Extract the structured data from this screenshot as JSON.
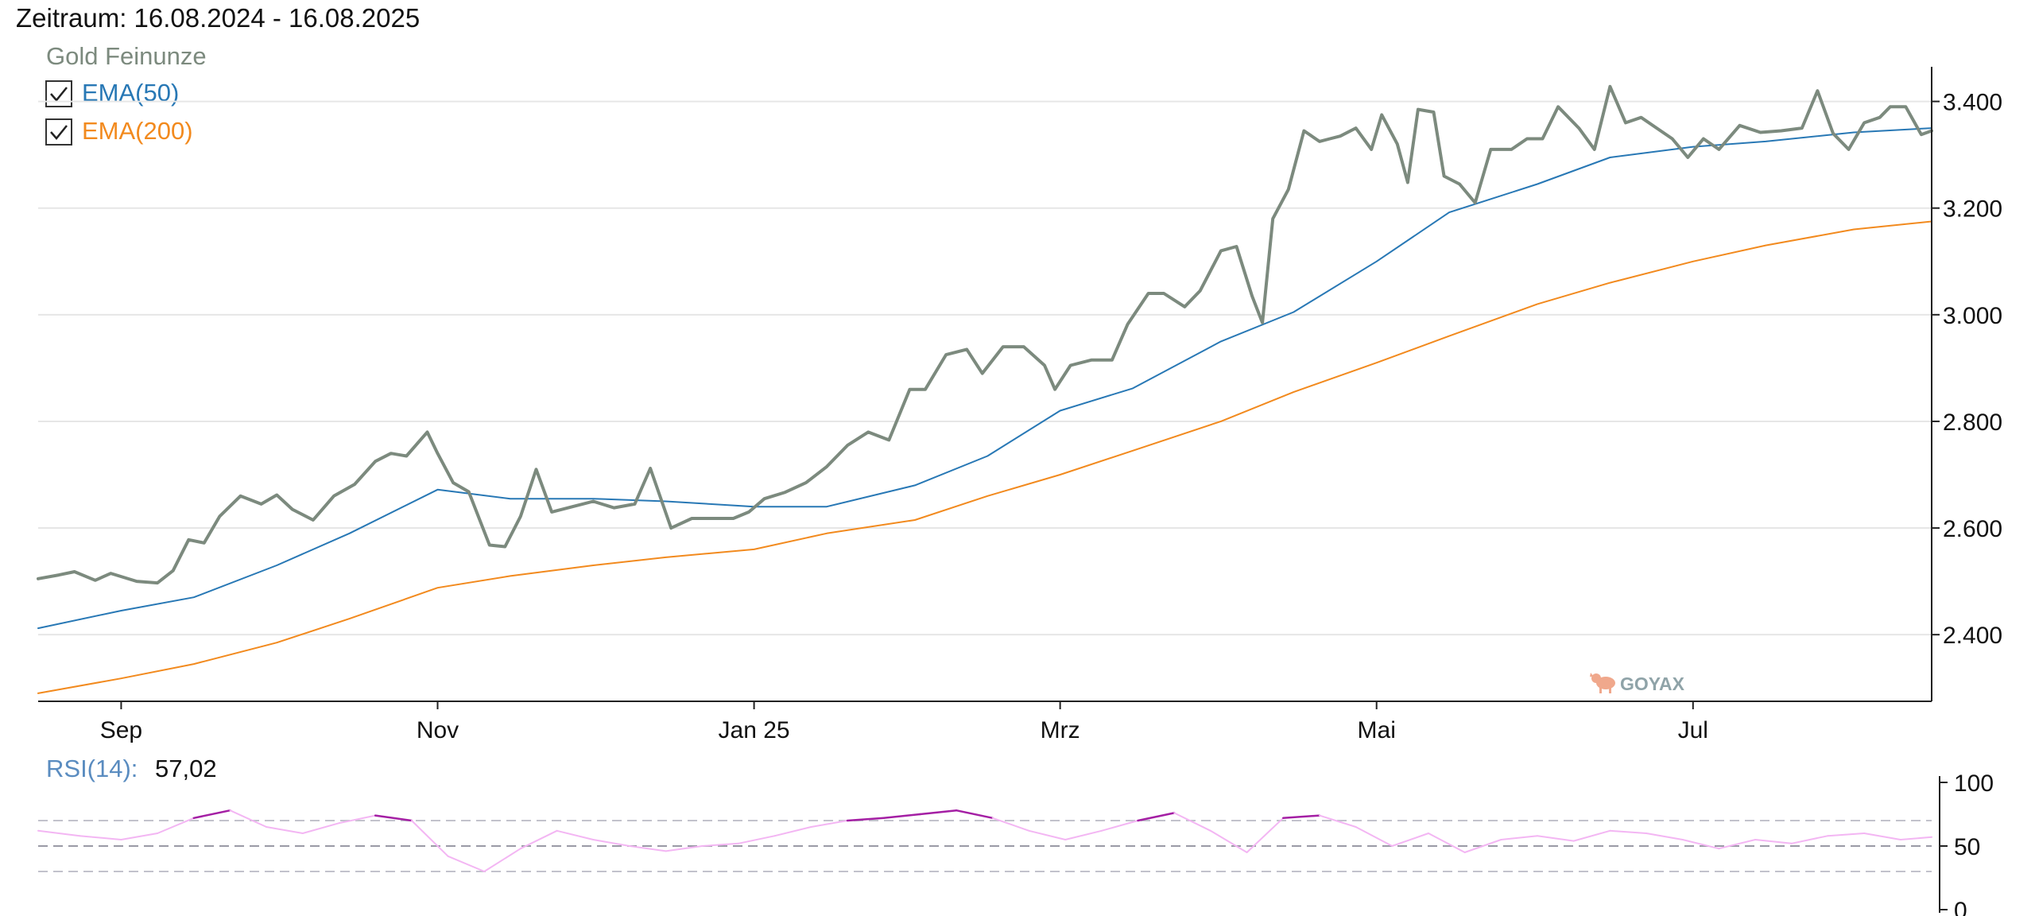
{
  "header": {
    "zeitraum": "Zeitraum: 16.08.2024 - 16.08.2025"
  },
  "legend": {
    "title": "Gold Feinunze",
    "items": [
      {
        "label": "EMA(50)",
        "checked": true,
        "color": "#2878b5"
      },
      {
        "label": "EMA(200)",
        "checked": true,
        "color": "#f28a1e"
      }
    ]
  },
  "watermark": "GOYAX",
  "colors": {
    "price": "#7c8a7e",
    "ema50": "#2878b5",
    "ema200": "#f28a1e",
    "rsi_normal": "#f3b6f3",
    "rsi_extreme": "#a41fa4",
    "grid": "#e6e6e6",
    "axis": "#222222"
  },
  "rsi": {
    "label": "RSI(14):",
    "value": "57,02"
  },
  "chart_data": [
    {
      "type": "line",
      "title": "Gold Feinunze",
      "x_tick_labels": [
        "Sep",
        "Nov",
        "Jan 25",
        "Mrz",
        "Mai",
        "Jul"
      ],
      "x_ticks": [
        "2024-09-01",
        "2024-11-01",
        "2025-01-01",
        "2025-03-01",
        "2025-05-01",
        "2025-07-01"
      ],
      "x_range": [
        "2024-08-16",
        "2025-08-16"
      ],
      "y_ticks": [
        2400,
        2600,
        2800,
        3000,
        3200,
        3400
      ],
      "y_tick_labels": [
        "2.400",
        "2.600",
        "2.800",
        "3.000",
        "3.200",
        "3.400"
      ],
      "ylim": [
        2275,
        3465
      ],
      "grid": "horizontal",
      "y_axis_side": "right",
      "series": [
        {
          "name": "Gold Feinunze",
          "x": [
            "2024-08-16",
            "2024-08-20",
            "2024-08-23",
            "2024-08-27",
            "2024-08-30",
            "2024-09-04",
            "2024-09-08",
            "2024-09-11",
            "2024-09-14",
            "2024-09-17",
            "2024-09-20",
            "2024-09-24",
            "2024-09-28",
            "2024-10-01",
            "2024-10-04",
            "2024-10-08",
            "2024-10-12",
            "2024-10-16",
            "2024-10-20",
            "2024-10-23",
            "2024-10-26",
            "2024-10-30",
            "2024-11-01",
            "2024-11-04",
            "2024-11-07",
            "2024-11-11",
            "2024-11-14",
            "2024-11-17",
            "2024-11-20",
            "2024-11-23",
            "2024-11-27",
            "2024-12-01",
            "2024-12-05",
            "2024-12-09",
            "2024-12-12",
            "2024-12-16",
            "2024-12-20",
            "2024-12-24",
            "2024-12-28",
            "2024-12-31",
            "2025-01-03",
            "2025-01-07",
            "2025-01-11",
            "2025-01-15",
            "2025-01-19",
            "2025-01-23",
            "2025-01-27",
            "2025-01-31",
            "2025-02-03",
            "2025-02-07",
            "2025-02-11",
            "2025-02-14",
            "2025-02-18",
            "2025-02-22",
            "2025-02-26",
            "2025-02-28",
            "2025-03-03",
            "2025-03-07",
            "2025-03-11",
            "2025-03-14",
            "2025-03-18",
            "2025-03-21",
            "2025-03-25",
            "2025-03-28",
            "2025-04-01",
            "2025-04-04",
            "2025-04-07",
            "2025-04-09",
            "2025-04-11",
            "2025-04-14",
            "2025-04-17",
            "2025-04-20",
            "2025-04-22",
            "2025-04-24",
            "2025-04-27",
            "2025-04-30",
            "2025-05-02",
            "2025-05-05",
            "2025-05-07",
            "2025-05-09",
            "2025-05-12",
            "2025-05-14",
            "2025-05-17",
            "2025-05-20",
            "2025-05-23",
            "2025-05-27",
            "2025-05-30",
            "2025-06-02",
            "2025-06-05",
            "2025-06-09",
            "2025-06-12",
            "2025-06-15",
            "2025-06-18",
            "2025-06-21",
            "2025-06-24",
            "2025-06-27",
            "2025-06-30",
            "2025-07-03",
            "2025-07-06",
            "2025-07-10",
            "2025-07-14",
            "2025-07-18",
            "2025-07-22",
            "2025-07-25",
            "2025-07-28",
            "2025-07-31",
            "2025-08-03",
            "2025-08-06",
            "2025-08-08",
            "2025-08-11",
            "2025-08-14",
            "2025-08-16"
          ],
          "y": [
            2505,
            2512,
            2518,
            2502,
            2515,
            2500,
            2497,
            2520,
            2578,
            2572,
            2622,
            2660,
            2645,
            2662,
            2635,
            2615,
            2660,
            2682,
            2725,
            2740,
            2735,
            2780,
            2740,
            2685,
            2668,
            2568,
            2565,
            2622,
            2710,
            2630,
            2640,
            2650,
            2638,
            2645,
            2712,
            2600,
            2618,
            2618,
            2618,
            2630,
            2655,
            2667,
            2685,
            2715,
            2755,
            2780,
            2765,
            2860,
            2860,
            2925,
            2935,
            2890,
            2940,
            2940,
            2905,
            2860,
            2905,
            2915,
            2915,
            2982,
            3040,
            3040,
            3015,
            3045,
            3120,
            3128,
            3035,
            2985,
            3180,
            3235,
            3345,
            3325,
            3330,
            3335,
            3350,
            3310,
            3375,
            3320,
            3248,
            3385,
            3380,
            3260,
            3245,
            3210,
            3310,
            3310,
            3330,
            3330,
            3390,
            3350,
            3310,
            3428,
            3360,
            3370,
            3350,
            3330,
            3295,
            3330,
            3310,
            3355,
            3342,
            3345,
            3350,
            3420,
            3340,
            3310,
            3360,
            3370,
            3390,
            3390,
            3338,
            3345
          ]
        },
        {
          "name": "EMA(50)",
          "x": [
            "2024-08-16",
            "2024-09-01",
            "2024-09-15",
            "2024-10-01",
            "2024-10-15",
            "2024-11-01",
            "2024-11-15",
            "2024-12-01",
            "2024-12-15",
            "2025-01-01",
            "2025-01-15",
            "2025-02-01",
            "2025-02-15",
            "2025-03-01",
            "2025-03-15",
            "2025-04-01",
            "2025-04-15",
            "2025-05-01",
            "2025-05-15",
            "2025-06-01",
            "2025-06-15",
            "2025-07-01",
            "2025-07-15",
            "2025-08-01",
            "2025-08-16"
          ],
          "y": [
            2412,
            2445,
            2470,
            2530,
            2590,
            2672,
            2655,
            2655,
            2650,
            2640,
            2640,
            2680,
            2735,
            2820,
            2862,
            2950,
            3005,
            3100,
            3192,
            3245,
            3295,
            3315,
            3325,
            3342,
            3350
          ]
        },
        {
          "name": "EMA(200)",
          "x": [
            "2024-08-16",
            "2024-09-01",
            "2024-09-15",
            "2024-10-01",
            "2024-10-15",
            "2024-11-01",
            "2024-11-15",
            "2024-12-01",
            "2024-12-15",
            "2025-01-01",
            "2025-01-15",
            "2025-02-01",
            "2025-02-15",
            "2025-03-01",
            "2025-03-15",
            "2025-04-01",
            "2025-04-15",
            "2025-05-01",
            "2025-05-15",
            "2025-06-01",
            "2025-06-15",
            "2025-07-01",
            "2025-07-15",
            "2025-08-01",
            "2025-08-16"
          ],
          "y": [
            2290,
            2318,
            2345,
            2385,
            2430,
            2488,
            2510,
            2530,
            2545,
            2560,
            2590,
            2615,
            2660,
            2700,
            2745,
            2800,
            2855,
            2910,
            2960,
            3020,
            3060,
            3100,
            3130,
            3160,
            3175
          ]
        }
      ]
    },
    {
      "type": "line",
      "title": "RSI(14)",
      "ylim": [
        0,
        100
      ],
      "y_ticks": [
        0,
        50,
        100
      ],
      "y_tick_labels": [
        "0",
        "50",
        "100"
      ],
      "reference_lines": [
        30,
        50,
        70
      ],
      "series": [
        {
          "name": "RSI(14)",
          "x": [
            "2024-08-16",
            "2024-08-24",
            "2024-09-01",
            "2024-09-08",
            "2024-09-15",
            "2024-09-22",
            "2024-09-29",
            "2024-10-06",
            "2024-10-13",
            "2024-10-20",
            "2024-10-27",
            "2024-11-03",
            "2024-11-10",
            "2024-11-17",
            "2024-11-24",
            "2024-12-01",
            "2024-12-08",
            "2024-12-15",
            "2024-12-22",
            "2024-12-29",
            "2025-01-05",
            "2025-01-12",
            "2025-01-19",
            "2025-01-26",
            "2025-02-02",
            "2025-02-09",
            "2025-02-16",
            "2025-02-23",
            "2025-03-02",
            "2025-03-09",
            "2025-03-16",
            "2025-03-23",
            "2025-03-30",
            "2025-04-06",
            "2025-04-13",
            "2025-04-20",
            "2025-04-27",
            "2025-05-04",
            "2025-05-11",
            "2025-05-18",
            "2025-05-25",
            "2025-06-01",
            "2025-06-08",
            "2025-06-15",
            "2025-06-22",
            "2025-06-29",
            "2025-07-06",
            "2025-07-13",
            "2025-07-20",
            "2025-07-27",
            "2025-08-03",
            "2025-08-10",
            "2025-08-16"
          ],
          "y": [
            62,
            58,
            55,
            60,
            72,
            78,
            65,
            60,
            68,
            74,
            70,
            42,
            30,
            48,
            62,
            55,
            50,
            46,
            50,
            52,
            58,
            65,
            70,
            72,
            75,
            78,
            72,
            62,
            55,
            62,
            70,
            76,
            62,
            45,
            72,
            74,
            65,
            50,
            60,
            45,
            55,
            58,
            54,
            62,
            60,
            55,
            48,
            55,
            52,
            58,
            60,
            55,
            57
          ]
        }
      ]
    }
  ]
}
